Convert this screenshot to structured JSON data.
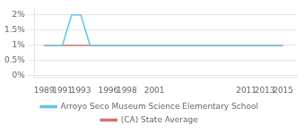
{
  "chart_data": {
    "type": "line",
    "series": [
      {
        "name": "Arroyo Seco Museum Science Elementary School",
        "color": "#5bc8e8",
        "x": [
          1989,
          1991,
          1992,
          1993,
          1994,
          1996,
          1998,
          2001,
          2011,
          2013,
          2015
        ],
        "values": [
          0.01,
          0.01,
          0.02,
          0.02,
          0.01,
          0.01,
          0.01,
          0.01,
          0.01,
          0.01,
          0.01
        ]
      },
      {
        "name": "(CA) State Average",
        "color": "#d87070",
        "x": [
          1989,
          2015
        ],
        "values": [
          0.01,
          0.01
        ]
      }
    ],
    "xlim": [
      1988.0,
      2016.5
    ],
    "xticks": [
      1989,
      1991,
      1993,
      1996,
      1998,
      2001,
      2011,
      2013,
      2015
    ],
    "ylim": [
      -0.0005,
      0.0225
    ],
    "yticks": [
      {
        "value": 0.0,
        "label": "0%"
      },
      {
        "value": 0.005,
        "label": "0.5%"
      },
      {
        "value": 0.01,
        "label": "1%"
      },
      {
        "value": 0.015,
        "label": "1.5%"
      },
      {
        "value": 0.02,
        "label": "2%"
      }
    ],
    "grid": "y",
    "legend": "bottom"
  }
}
